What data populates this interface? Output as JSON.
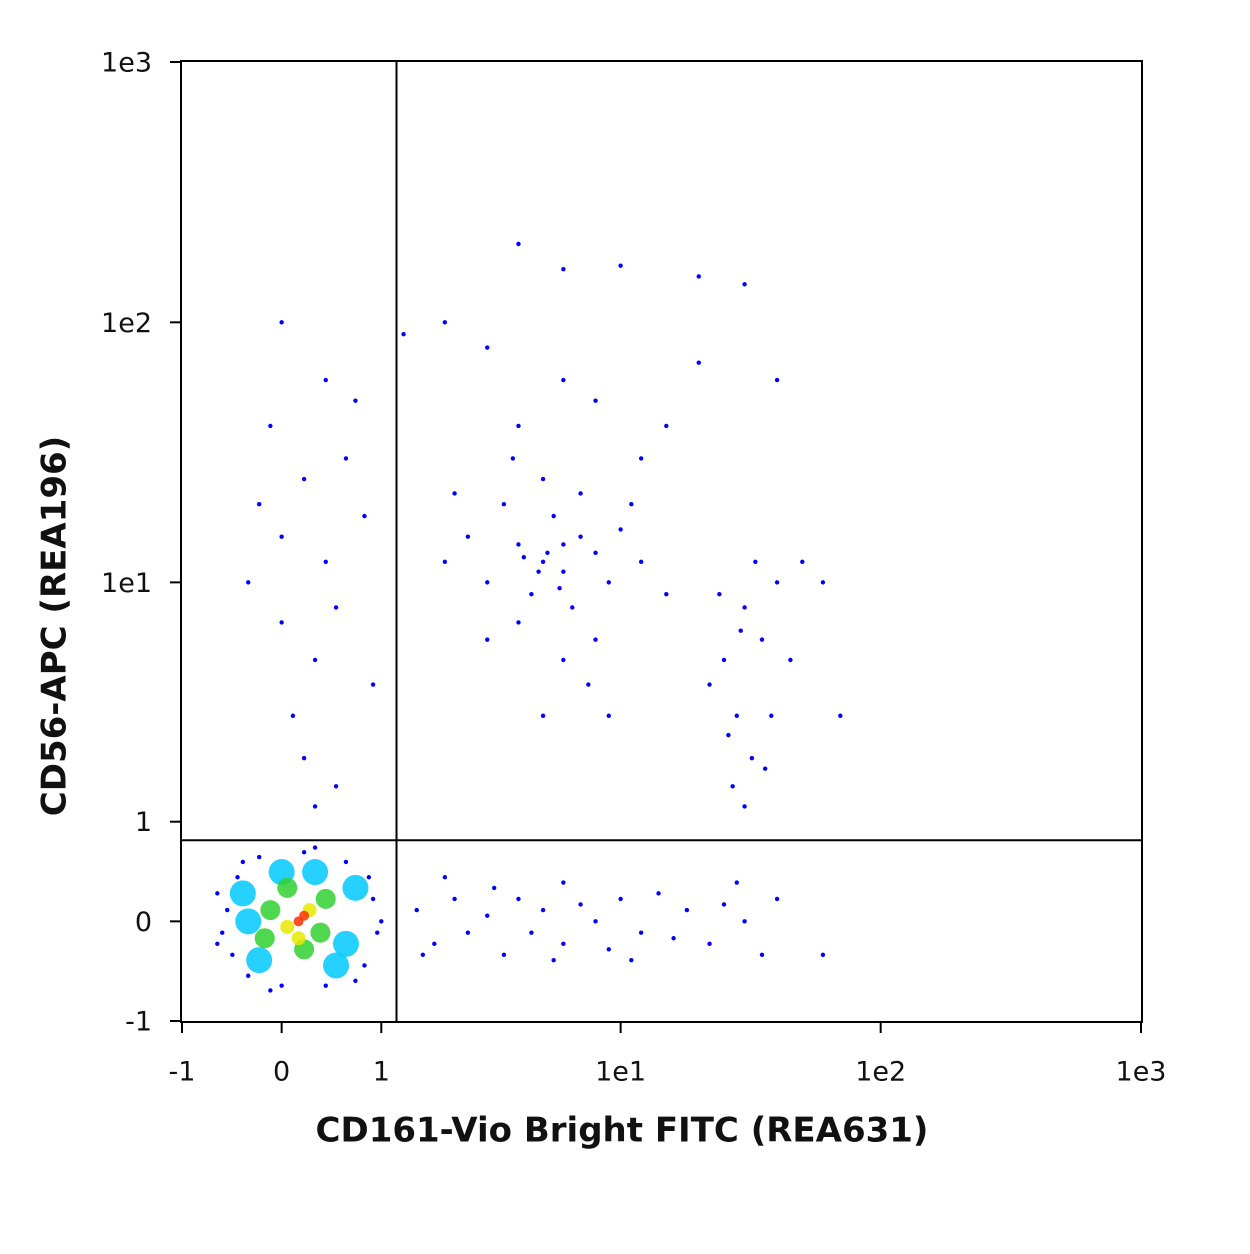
{
  "chart_data": {
    "type": "scatter",
    "x_label": "CD161-Vio Bright FITC (REA631)",
    "y_label": "CD56-APC (REA196)",
    "xscale": "biexponential",
    "yscale": "biexponential",
    "xlim": [
      -1,
      1000
    ],
    "ylim": [
      -1,
      1000
    ],
    "xticks": [
      -1,
      0,
      1,
      {
        "value": 10,
        "label": "1e1"
      },
      {
        "value": 100,
        "label": "1e2"
      },
      {
        "value": 1000,
        "label": "1e3"
      }
    ],
    "yticks": [
      -1,
      0,
      1,
      {
        "value": 10,
        "label": "1e1"
      },
      {
        "value": 100,
        "label": "1e2"
      },
      {
        "value": 1000,
        "label": "1e3"
      }
    ],
    "gates": {
      "x": 1.2,
      "y": 0.78
    },
    "series": [
      {
        "color": "#0000ff",
        "x": [
          -0.5,
          -0.45,
          -0.4,
          -0.3,
          -0.2,
          0,
          0.2,
          0.4,
          0.6,
          0.8,
          0.9,
          0.95,
          -0.55,
          0.7,
          -0.35,
          0.85,
          0.3,
          -0.1,
          1.0,
          -0.6,
          1.5,
          1.8,
          2.2,
          2.5,
          3,
          3.5,
          4,
          4.5,
          5,
          6,
          7,
          8,
          9,
          10,
          12,
          14,
          16,
          18,
          22,
          25,
          30,
          35,
          40,
          2,
          6,
          11,
          28,
          1.6,
          3.2,
          5.5,
          3,
          4,
          5,
          6,
          7,
          4.5,
          5.5,
          3.5,
          8,
          6.5,
          2.5,
          9,
          4,
          5,
          7,
          10,
          12,
          3,
          6,
          2,
          8,
          4.8,
          5.2,
          6,
          4.2,
          5.8,
          11,
          3.8,
          15,
          2.2,
          7.5,
          9,
          5,
          4,
          8,
          12,
          6,
          15,
          20,
          3,
          -0.2,
          0,
          0.2,
          0.4,
          0.6,
          0.3,
          0.1,
          0.5,
          -0.1,
          0.8,
          0.2,
          0.5,
          0.3,
          -0.3,
          0.7,
          0.4,
          0.9,
          0.0,
          25,
          28,
          30,
          32,
          35,
          22,
          27,
          30,
          38,
          40,
          33,
          26,
          29,
          36,
          45,
          50,
          24,
          4,
          6,
          10,
          20,
          30,
          2,
          1.3,
          0.0,
          40,
          60,
          70,
          60,
          -0.6
        ],
        "y": [
          0.1,
          -0.3,
          0.4,
          -0.5,
          0.6,
          -0.6,
          0.65,
          -0.6,
          0.55,
          -0.4,
          0.2,
          -0.1,
          -0.1,
          -0.55,
          0.55,
          0.4,
          0.7,
          -0.65,
          0.0,
          0.25,
          0.1,
          -0.2,
          0.2,
          -0.1,
          0.05,
          -0.3,
          0.2,
          -0.1,
          0.1,
          -0.2,
          0.15,
          0.0,
          -0.25,
          0.2,
          -0.1,
          0.25,
          -0.15,
          0.1,
          -0.2,
          0.15,
          0.0,
          -0.3,
          0.2,
          0.4,
          0.35,
          -0.35,
          0.35,
          -0.3,
          0.3,
          -0.35,
          10,
          14,
          12,
          11,
          15,
          9,
          18,
          20,
          13,
          8,
          15,
          10,
          7,
          25,
          22,
          16,
          12,
          6,
          5,
          12,
          6,
          11,
          13,
          14,
          12.5,
          9.5,
          20,
          30,
          9,
          22,
          4,
          3,
          3,
          40,
          50,
          30,
          60,
          40,
          70,
          80,
          20,
          15,
          25,
          12,
          30,
          5,
          3,
          8,
          40,
          18,
          2,
          1.5,
          1.2,
          10,
          50,
          60,
          4,
          7,
          5,
          3,
          8,
          2,
          6,
          4,
          1.5,
          1.2,
          3,
          10,
          12,
          2.5,
          6.5,
          1.8,
          5,
          12,
          9,
          200,
          160,
          165,
          150,
          140,
          100,
          90,
          100,
          60,
          10,
          3,
          -0.3,
          -0.2
        ]
      },
      {
        "color": "#00c8ff",
        "x": [
          -0.3,
          0,
          0.5,
          0.7,
          -0.2,
          0.3,
          0.6,
          -0.35
        ],
        "y": [
          0.0,
          0.45,
          -0.4,
          0.3,
          -0.35,
          0.45,
          -0.2,
          0.25
        ]
      },
      {
        "color": "#30d030",
        "x": [
          -0.1,
          0.2,
          0.4,
          0.05,
          0.35,
          -0.15
        ],
        "y": [
          0.1,
          -0.25,
          0.2,
          0.3,
          -0.1,
          -0.15
        ]
      },
      {
        "color": "#e8e800",
        "x": [
          0.05,
          0.25,
          0.15
        ],
        "y": [
          -0.05,
          0.1,
          -0.15
        ]
      },
      {
        "color": "#ff3000",
        "x": [
          0.15,
          0.2
        ],
        "y": [
          0.0,
          0.05
        ]
      }
    ]
  }
}
